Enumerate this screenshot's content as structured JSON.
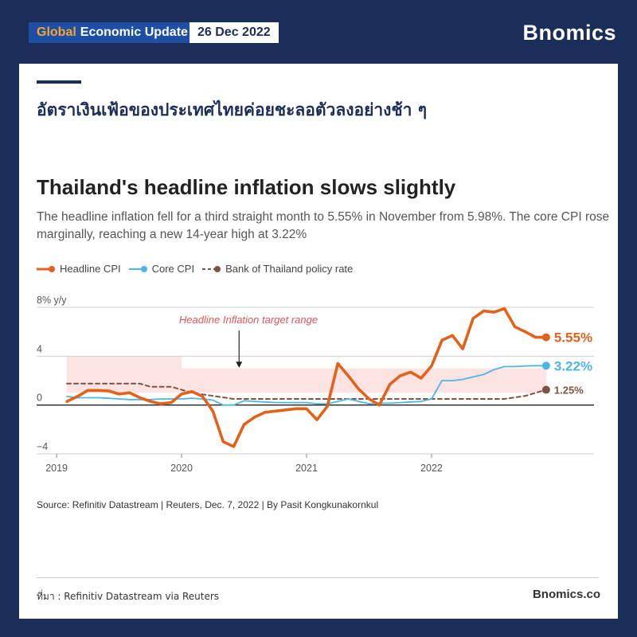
{
  "header": {
    "tag_accent": "Global",
    "tag_rest": "Economic Update",
    "date": "26 Dec 2022",
    "brand": "Bnomics"
  },
  "thai_title": "อัตราเงินเฟ้อของประเทศไทยค่อยชะลอตัวลงอย่างช้า ๆ",
  "chart_data": {
    "type": "line",
    "title": "Thailand's headline inflation slows slightly",
    "subtitle": "The headline inflation fell for a third straight month to 5.55% in November from 5.98%. The core CPI rose marginally, reaching a new 14-year high at 3.22%",
    "ylabel": "% y/y",
    "ylim": [
      -4,
      8
    ],
    "yticks": [
      {
        "value": 8,
        "label": "8% y/y"
      },
      {
        "value": 4,
        "label": "4"
      },
      {
        "value": 0,
        "label": "0"
      },
      {
        "value": -4,
        "label": "−4"
      }
    ],
    "xticks": [
      {
        "value": 2019,
        "label": "2019"
      },
      {
        "value": 2020,
        "label": "2020"
      },
      {
        "value": 2021,
        "label": "2021"
      },
      {
        "value": 2022,
        "label": "2022"
      }
    ],
    "grid": true,
    "target_band": {
      "label": "Headline Inflation target range",
      "segments": [
        {
          "x_start": 2019.08,
          "x_end": 2020.0,
          "y_low": 1.0,
          "y_high": 4.0
        },
        {
          "x_start": 2020.0,
          "x_end": 2022.92,
          "y_low": 1.0,
          "y_high": 3.0
        }
      ]
    },
    "series": [
      {
        "name": "Headline CPI",
        "color": "#e2621b",
        "end_label": "5.55%",
        "x": [
          2019.083,
          2019.167,
          2019.25,
          2019.333,
          2019.417,
          2019.5,
          2019.583,
          2019.667,
          2019.75,
          2019.833,
          2019.917,
          2020.0,
          2020.083,
          2020.167,
          2020.25,
          2020.333,
          2020.417,
          2020.5,
          2020.583,
          2020.667,
          2020.75,
          2020.833,
          2020.917,
          2021.0,
          2021.083,
          2021.167,
          2021.25,
          2021.333,
          2021.417,
          2021.5,
          2021.583,
          2021.667,
          2021.75,
          2021.833,
          2021.917,
          2022.0,
          2022.083,
          2022.167,
          2022.25,
          2022.333,
          2022.417,
          2022.5,
          2022.583,
          2022.667,
          2022.75,
          2022.833,
          2022.917
        ],
        "values": [
          0.3,
          0.7,
          1.2,
          1.2,
          1.15,
          0.9,
          1.0,
          0.6,
          0.3,
          0.1,
          0.2,
          0.9,
          1.1,
          0.7,
          -0.5,
          -3.0,
          -3.4,
          -1.6,
          -1.0,
          -0.6,
          -0.5,
          -0.4,
          -0.3,
          -0.3,
          -1.2,
          -0.1,
          3.4,
          2.4,
          1.3,
          0.5,
          0.0,
          1.7,
          2.4,
          2.7,
          2.2,
          3.2,
          5.3,
          5.7,
          4.6,
          7.1,
          7.7,
          7.6,
          7.9,
          6.4,
          6.0,
          5.55,
          5.55
        ]
      },
      {
        "name": "Core CPI",
        "color": "#4cb6e8",
        "end_label": "3.22%",
        "x": [
          2019.083,
          2019.167,
          2019.25,
          2019.333,
          2019.417,
          2019.5,
          2019.583,
          2019.667,
          2019.75,
          2019.833,
          2019.917,
          2020.0,
          2020.083,
          2020.167,
          2020.25,
          2020.333,
          2020.417,
          2020.5,
          2020.583,
          2020.667,
          2020.75,
          2020.833,
          2020.917,
          2021.0,
          2021.083,
          2021.167,
          2021.25,
          2021.333,
          2021.417,
          2021.5,
          2021.583,
          2021.667,
          2021.75,
          2021.833,
          2021.917,
          2022.0,
          2022.083,
          2022.167,
          2022.25,
          2022.333,
          2022.417,
          2022.5,
          2022.583,
          2022.667,
          2022.75,
          2022.833,
          2022.917
        ],
        "values": [
          0.7,
          0.6,
          0.6,
          0.6,
          0.55,
          0.5,
          0.45,
          0.45,
          0.45,
          0.5,
          0.5,
          0.5,
          0.55,
          0.5,
          0.4,
          0.0,
          0.0,
          0.35,
          0.3,
          0.25,
          0.2,
          0.2,
          0.2,
          0.2,
          0.1,
          0.1,
          0.3,
          0.5,
          0.3,
          0.1,
          0.15,
          0.15,
          0.2,
          0.25,
          0.3,
          0.5,
          2.0,
          2.0,
          2.1,
          2.3,
          2.5,
          2.9,
          3.15,
          3.15,
          3.2,
          3.22,
          3.22
        ]
      },
      {
        "name": "Bank of Thailand policy rate",
        "color": "#7a5545",
        "end_label": "1.25%",
        "x": [
          2019.083,
          2019.667,
          2019.75,
          2019.917,
          2020.0,
          2020.083,
          2020.25,
          2020.417,
          2022.583,
          2022.75,
          2022.917
        ],
        "values": [
          1.75,
          1.75,
          1.5,
          1.5,
          1.25,
          1.0,
          0.75,
          0.5,
          0.5,
          0.75,
          1.25
        ]
      }
    ],
    "legend_placement": "top-left"
  },
  "source": "Source: Refinitiv Datastream | Reuters, Dec. 7, 2022 | By Pasit Kongkunakornkul",
  "footer": {
    "credit": "ที่มา : Refinitiv Datastream via Reuters",
    "site": "Bnomics.co"
  }
}
